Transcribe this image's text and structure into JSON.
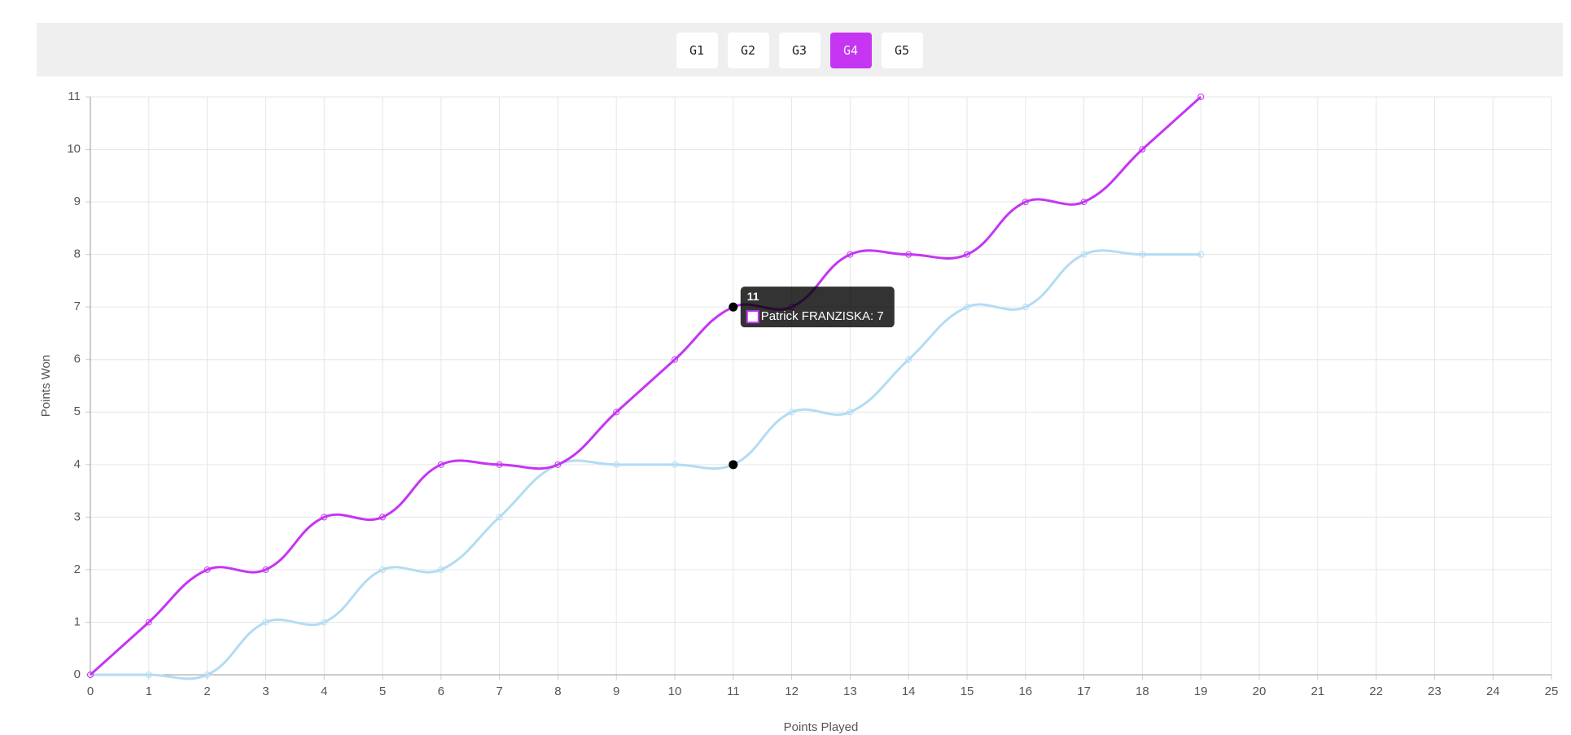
{
  "tabs": {
    "items": [
      "G1",
      "G2",
      "G3",
      "G4",
      "G5"
    ],
    "active": 3
  },
  "chart_data": {
    "type": "line",
    "x_label": "Points Played",
    "y_label": "Points Won",
    "x": [
      0,
      1,
      2,
      3,
      4,
      5,
      6,
      7,
      8,
      9,
      10,
      11,
      12,
      13,
      14,
      15,
      16,
      17,
      18,
      19
    ],
    "series": [
      {
        "name": "Patrick FRANZISKA",
        "color": "#c535f2",
        "values": [
          0,
          1,
          2,
          2,
          3,
          3,
          4,
          4,
          4,
          5,
          6,
          7,
          7,
          8,
          8,
          8,
          9,
          9,
          10,
          11
        ]
      },
      {
        "color": "#b3dcf3",
        "values": [
          0,
          0,
          0,
          1,
          1,
          2,
          2,
          3,
          4,
          4,
          4,
          4,
          5,
          5,
          6,
          7,
          7,
          8,
          8,
          8
        ]
      }
    ],
    "xlim": [
      0,
      25
    ],
    "xticks": [
      0,
      1,
      2,
      3,
      4,
      5,
      6,
      7,
      8,
      9,
      10,
      11,
      12,
      13,
      14,
      15,
      16,
      17,
      18,
      19,
      20,
      21,
      22,
      23,
      24,
      25
    ],
    "ylim": [
      0,
      11
    ],
    "yticks": [
      0,
      1,
      2,
      3,
      4,
      5,
      6,
      7,
      8,
      9,
      10,
      11
    ],
    "grid": true,
    "highlight_index": 11,
    "tooltip": {
      "title": "11",
      "text": "Patrick FRANZISKA: 7"
    }
  }
}
